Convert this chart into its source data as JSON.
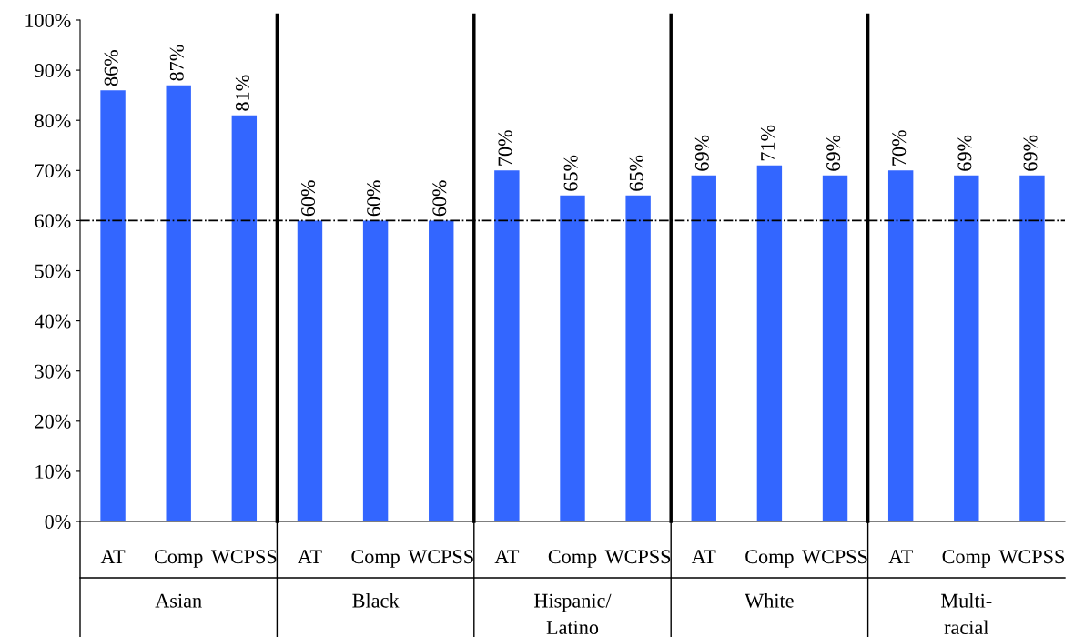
{
  "chart_data": {
    "type": "bar",
    "categories": [
      "AT",
      "Comp",
      "WCPSS",
      "AT",
      "Comp",
      "WCPSS",
      "AT",
      "Comp",
      "WCPSS",
      "AT",
      "Comp",
      "WCPSS",
      "AT",
      "Comp",
      "WCPSS"
    ],
    "values": [
      86,
      87,
      81,
      60,
      60,
      60,
      70,
      65,
      65,
      69,
      71,
      69,
      70,
      69,
      69
    ],
    "value_labels": [
      "86%",
      "87%",
      "81%",
      "60%",
      "60%",
      "60%",
      "70%",
      "65%",
      "65%",
      "69%",
      "71%",
      "69%",
      "70%",
      "69%",
      "69%"
    ],
    "color": "#3366ff",
    "ylim": [
      0,
      100
    ],
    "yticks": [
      {
        "value": 0,
        "label": "0%"
      },
      {
        "value": 10,
        "label": "10%"
      },
      {
        "value": 20,
        "label": "20%"
      },
      {
        "value": 30,
        "label": "30%"
      },
      {
        "value": 40,
        "label": "40%"
      },
      {
        "value": 50,
        "label": "50%"
      },
      {
        "value": 60,
        "label": "60%"
      },
      {
        "value": 70,
        "label": "70%"
      },
      {
        "value": 80,
        "label": "80%"
      },
      {
        "value": 90,
        "label": "90%"
      },
      {
        "value": 100,
        "label": "100%"
      }
    ],
    "ref_lines": [
      {
        "axis": "y",
        "value": 60,
        "color": "#000000",
        "line_style": "dashdot"
      }
    ],
    "annotations": [
      "Asian",
      "Black",
      "Hispanic/\nLatino",
      "White",
      "Multi-\nracial"
    ],
    "grid": false,
    "legend": false
  }
}
